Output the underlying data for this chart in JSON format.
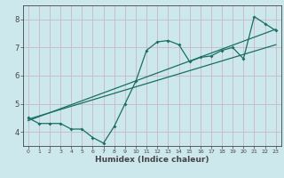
{
  "xlabel": "Humidex (Indice chaleur)",
  "bg_color": "#cce8ec",
  "grid_color": "#c8b8c8",
  "line_color": "#1a6e65",
  "axis_color": "#444444",
  "xlim": [
    -0.5,
    23.5
  ],
  "ylim": [
    3.5,
    8.5
  ],
  "yticks": [
    4,
    5,
    6,
    7,
    8
  ],
  "xticks": [
    0,
    1,
    2,
    3,
    4,
    5,
    6,
    7,
    8,
    9,
    10,
    11,
    12,
    13,
    14,
    15,
    16,
    17,
    18,
    19,
    20,
    21,
    22,
    23
  ],
  "main_x": [
    0,
    1,
    2,
    3,
    4,
    5,
    6,
    7,
    8,
    9,
    10,
    11,
    12,
    13,
    14,
    15,
    16,
    17,
    18,
    19,
    20,
    21,
    22,
    23
  ],
  "main_y": [
    4.5,
    4.3,
    4.3,
    4.3,
    4.1,
    4.1,
    3.8,
    3.6,
    4.2,
    5.0,
    5.8,
    6.9,
    7.2,
    7.25,
    7.1,
    6.5,
    6.65,
    6.7,
    6.9,
    7.0,
    6.6,
    8.1,
    7.85,
    7.6
  ],
  "trend1_x": [
    0,
    23
  ],
  "trend1_y": [
    4.4,
    7.65
  ],
  "trend2_x": [
    0,
    23
  ],
  "trend2_y": [
    4.45,
    7.1
  ]
}
